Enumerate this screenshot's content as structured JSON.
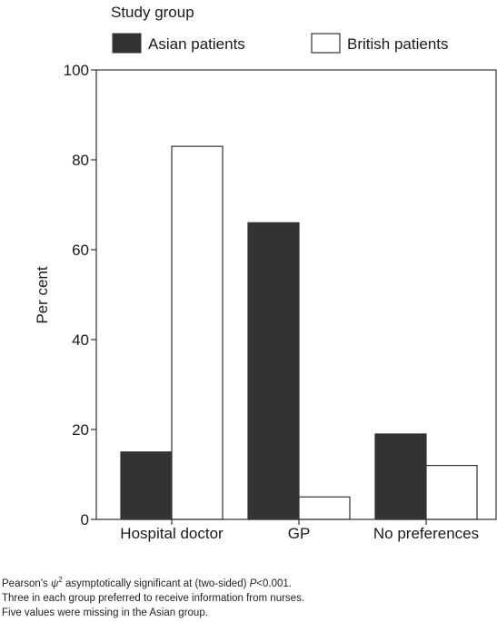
{
  "chart_data": {
    "type": "bar",
    "legend": {
      "title": "Study group",
      "position": "top"
    },
    "categories": [
      "Hospital doctor",
      "GP",
      "No preferences"
    ],
    "series": [
      {
        "name": "Asian patients",
        "values": [
          15,
          66,
          19
        ],
        "color": "#333333"
      },
      {
        "name": "British patients",
        "values": [
          83,
          5,
          12
        ],
        "color": "#ffffff"
      }
    ],
    "ylabel": "Per cent",
    "ylim": [
      0,
      100
    ],
    "yticks": [
      "0",
      "20",
      "40",
      "60",
      "80",
      "100"
    ],
    "grid": false
  },
  "notes": {
    "line1_prefix": "Pearson's ",
    "line1_symbol": "ψ",
    "line1_sup": "2",
    "line1_mid": " asymptotically significant at (two-sided) ",
    "line1_p": "P",
    "line1_suffix": "<0.001.",
    "line2": "Three in each group preferred to receive information from nurses.",
    "line3": "Five values were missing in the Asian group."
  }
}
